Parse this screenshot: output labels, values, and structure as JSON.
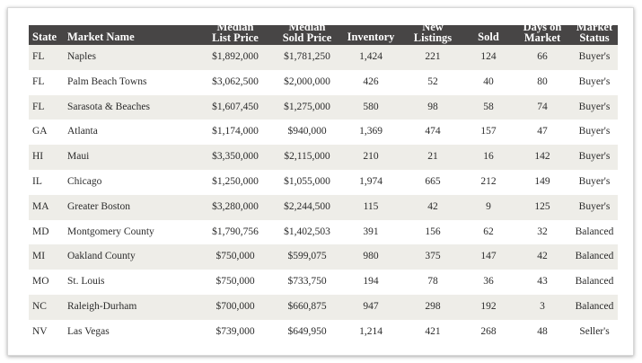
{
  "table": {
    "header": [
      [
        "State"
      ],
      [
        "Market Name"
      ],
      [
        "Median",
        "List Price"
      ],
      [
        "Median",
        "Sold Price"
      ],
      [
        "Inventory"
      ],
      [
        "New",
        "Listings"
      ],
      [
        "Sold"
      ],
      [
        "Days on",
        "Market"
      ],
      [
        "Market",
        "Status"
      ]
    ],
    "rows": [
      [
        "FL",
        "Naples",
        "$1,892,000",
        "$1,781,250",
        "1,424",
        "221",
        "124",
        "66",
        "Buyer's"
      ],
      [
        "FL",
        "Palm Beach Towns",
        "$3,062,500",
        "$2,000,000",
        "426",
        "52",
        "40",
        "80",
        "Buyer's"
      ],
      [
        "FL",
        "Sarasota & Beaches",
        "$1,607,450",
        "$1,275,000",
        "580",
        "98",
        "58",
        "74",
        "Buyer's"
      ],
      [
        "GA",
        "Atlanta",
        "$1,174,000",
        "$940,000",
        "1,369",
        "474",
        "157",
        "47",
        "Buyer's"
      ],
      [
        "HI",
        "Maui",
        "$3,350,000",
        "$2,115,000",
        "210",
        "21",
        "16",
        "142",
        "Buyer's"
      ],
      [
        "IL",
        "Chicago",
        "$1,250,000",
        "$1,055,000",
        "1,974",
        "665",
        "212",
        "149",
        "Buyer's"
      ],
      [
        "MA",
        "Greater Boston",
        "$3,280,000",
        "$2,244,500",
        "115",
        "42",
        "9",
        "125",
        "Buyer's"
      ],
      [
        "MD",
        "Montgomery County",
        "$1,790,756",
        "$1,402,503",
        "391",
        "156",
        "62",
        "32",
        "Balanced"
      ],
      [
        "MI",
        "Oakland County",
        "$750,000",
        "$599,075",
        "980",
        "375",
        "147",
        "42",
        "Balanced"
      ],
      [
        "MO",
        "St. Louis",
        "$750,000",
        "$733,750",
        "194",
        "78",
        "36",
        "43",
        "Balanced"
      ],
      [
        "NC",
        "Raleigh-Durham",
        "$700,000",
        "$660,875",
        "947",
        "298",
        "192",
        "3",
        "Balanced"
      ],
      [
        "NV",
        "Las Vegas",
        "$739,000",
        "$649,950",
        "1,214",
        "421",
        "268",
        "48",
        "Seller's"
      ]
    ]
  }
}
